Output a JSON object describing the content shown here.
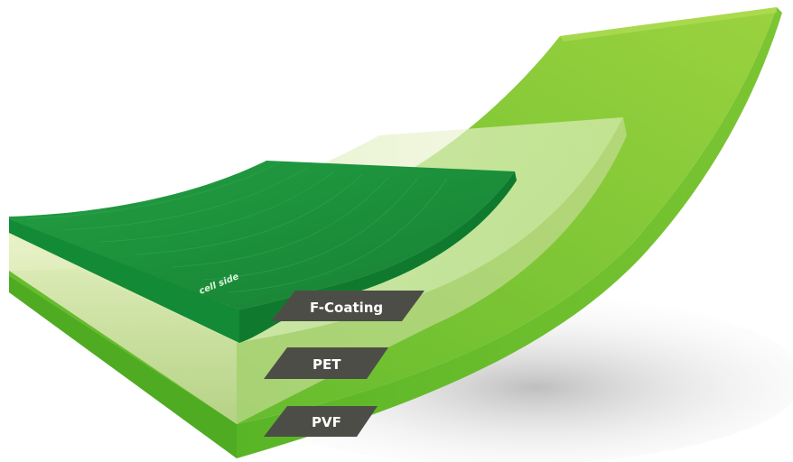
{
  "diagram": {
    "engraving": "cell side",
    "layers": [
      {
        "id": "f-coating",
        "label": "F-Coating",
        "color": "#1e8f3c"
      },
      {
        "id": "pet",
        "label": "PET",
        "color": "#d4e6a8"
      },
      {
        "id": "pvf",
        "label": "PVF",
        "color": "#6cc22e"
      }
    ],
    "label_tag_color": "#4d4d47"
  }
}
